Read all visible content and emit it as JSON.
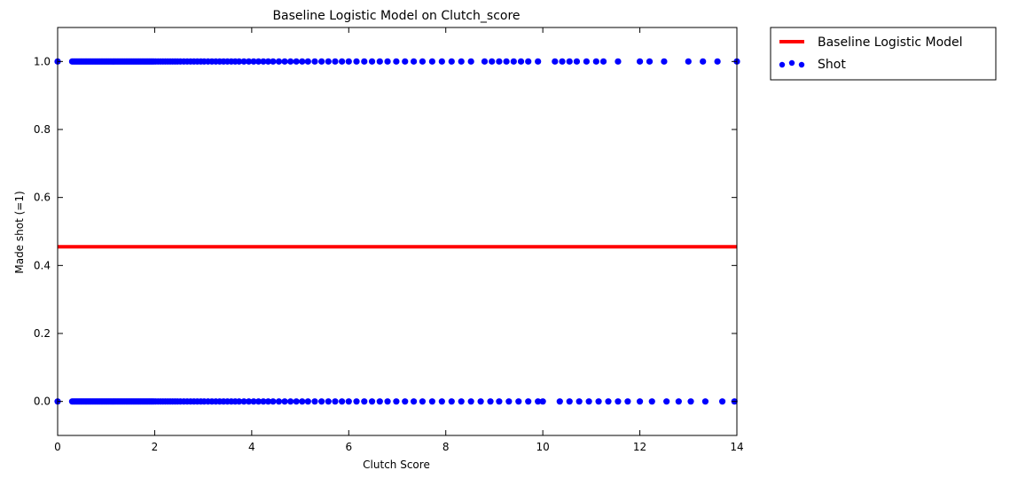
{
  "chart_data": {
    "type": "scatter",
    "title": "Baseline Logistic Model on Clutch_score",
    "xlabel": "Clutch Score",
    "ylabel": "Made shot (=1)",
    "xlim": [
      0,
      14
    ],
    "ylim": [
      -0.1,
      1.1
    ],
    "xticks": [
      0,
      2,
      4,
      6,
      8,
      10,
      12,
      14
    ],
    "xtick_labels": [
      "0",
      "2",
      "4",
      "6",
      "8",
      "10",
      "12",
      "14"
    ],
    "yticks": [
      0.0,
      0.2,
      0.4,
      0.6,
      0.8,
      1.0
    ],
    "ytick_labels": [
      "0.0",
      "0.2",
      "0.4",
      "0.6",
      "0.8",
      "1.0"
    ],
    "grid": false,
    "legend_position": "outside-top-right",
    "series": [
      {
        "name": "Baseline Logistic Model",
        "kind": "line",
        "color": "#ff0000",
        "x": [
          0,
          14
        ],
        "y": [
          0.455,
          0.455
        ]
      },
      {
        "name": "Shot",
        "kind": "scatter",
        "color": "#0000ff",
        "y_value": 1.0,
        "x": [
          0.0,
          0.3,
          0.33,
          0.36,
          0.39,
          0.42,
          0.45,
          0.48,
          0.51,
          0.54,
          0.57,
          0.6,
          0.63,
          0.66,
          0.69,
          0.72,
          0.75,
          0.78,
          0.81,
          0.84,
          0.87,
          0.9,
          0.93,
          0.96,
          0.99,
          1.02,
          1.05,
          1.08,
          1.11,
          1.14,
          1.17,
          1.2,
          1.23,
          1.26,
          1.29,
          1.32,
          1.35,
          1.38,
          1.41,
          1.44,
          1.47,
          1.5,
          1.53,
          1.56,
          1.59,
          1.62,
          1.65,
          1.68,
          1.71,
          1.74,
          1.77,
          1.8,
          1.83,
          1.86,
          1.89,
          1.92,
          1.95,
          1.98,
          2.02,
          2.07,
          2.12,
          2.17,
          2.22,
          2.27,
          2.32,
          2.37,
          2.42,
          2.47,
          2.53,
          2.6,
          2.67,
          2.74,
          2.81,
          2.88,
          2.95,
          3.02,
          3.1,
          3.18,
          3.26,
          3.34,
          3.42,
          3.5,
          3.58,
          3.66,
          3.74,
          3.84,
          3.94,
          4.04,
          4.14,
          4.24,
          4.34,
          4.44,
          4.56,
          4.68,
          4.8,
          4.92,
          5.04,
          5.16,
          5.3,
          5.44,
          5.58,
          5.72,
          5.86,
          6.0,
          6.16,
          6.32,
          6.48,
          6.64,
          6.8,
          6.98,
          7.16,
          7.34,
          7.52,
          7.72,
          7.92,
          8.12,
          8.32,
          8.52,
          8.8,
          8.95,
          9.1,
          9.25,
          9.4,
          9.55,
          9.7,
          9.9,
          10.25,
          10.4,
          10.55,
          10.7,
          10.9,
          11.1,
          11.25,
          11.55,
          12.0,
          12.2,
          12.5,
          13.0,
          13.3,
          13.6,
          14.0
        ]
      },
      {
        "name": "",
        "kind": "scatter",
        "color": "#0000ff",
        "y_value": 0.0,
        "x": [
          0.0,
          0.3,
          0.33,
          0.36,
          0.39,
          0.42,
          0.45,
          0.48,
          0.51,
          0.54,
          0.57,
          0.6,
          0.63,
          0.66,
          0.69,
          0.72,
          0.75,
          0.78,
          0.81,
          0.84,
          0.87,
          0.9,
          0.93,
          0.96,
          0.99,
          1.02,
          1.05,
          1.08,
          1.11,
          1.14,
          1.17,
          1.2,
          1.23,
          1.26,
          1.29,
          1.32,
          1.35,
          1.38,
          1.41,
          1.44,
          1.47,
          1.5,
          1.53,
          1.56,
          1.59,
          1.62,
          1.65,
          1.68,
          1.71,
          1.74,
          1.77,
          1.8,
          1.83,
          1.86,
          1.89,
          1.92,
          1.95,
          1.98,
          2.02,
          2.07,
          2.12,
          2.17,
          2.22,
          2.27,
          2.32,
          2.37,
          2.42,
          2.47,
          2.53,
          2.6,
          2.67,
          2.74,
          2.81,
          2.88,
          2.95,
          3.02,
          3.1,
          3.18,
          3.26,
          3.34,
          3.42,
          3.5,
          3.58,
          3.66,
          3.74,
          3.84,
          3.94,
          4.04,
          4.14,
          4.24,
          4.34,
          4.44,
          4.56,
          4.68,
          4.8,
          4.92,
          5.04,
          5.16,
          5.3,
          5.44,
          5.58,
          5.72,
          5.86,
          6.0,
          6.16,
          6.32,
          6.48,
          6.64,
          6.8,
          6.98,
          7.16,
          7.34,
          7.52,
          7.72,
          7.92,
          8.12,
          8.32,
          8.52,
          8.72,
          8.92,
          9.1,
          9.3,
          9.5,
          9.7,
          9.9,
          10.0,
          10.35,
          10.55,
          10.75,
          10.95,
          11.15,
          11.35,
          11.55,
          11.75,
          12.0,
          12.25,
          12.55,
          12.8,
          13.05,
          13.35,
          13.7,
          13.95
        ]
      }
    ]
  }
}
